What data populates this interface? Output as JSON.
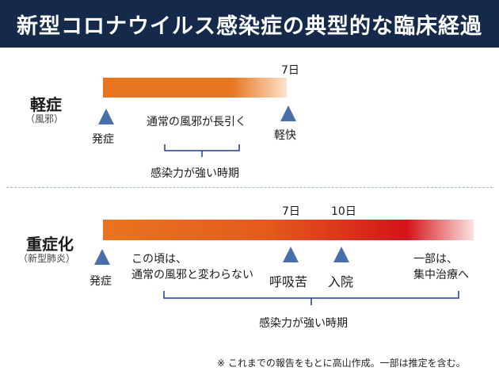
{
  "title": "新型コロナウイルス感染症の典型的な臨床経過",
  "mild": {
    "title": "軽症",
    "subtitle": "（風邪）",
    "day_label": "7日",
    "onset": "発症",
    "middle_note": "通常の風邪が長引く",
    "relief": "軽快",
    "infectious_period": "感染力が強い時期",
    "bar_colors": [
      "#e8751f",
      "#fbe3cc"
    ]
  },
  "severe": {
    "title": "重症化",
    "subtitle": "（新型肺炎）",
    "day7_label": "7日",
    "day10_label": "10日",
    "onset": "発症",
    "early_note_line1": "この頃は、",
    "early_note_line2": "通常の風邪と変わらない",
    "dyspnea": "呼吸苦",
    "hospitalization": "入院",
    "icu_line1": "一部は、",
    "icu_line2": "集中治療へ",
    "infectious_period": "感染力が強い時期",
    "bar_colors": [
      "#e8751f",
      "#d4141a",
      "#fbe3e0"
    ]
  },
  "footnote": "※ これまでの報告をもとに高山作成。一部は推定を含む。",
  "colors": {
    "header_bg": "#152a4a",
    "marker": "#4a6ea8",
    "brace": "#1f3d8a"
  }
}
